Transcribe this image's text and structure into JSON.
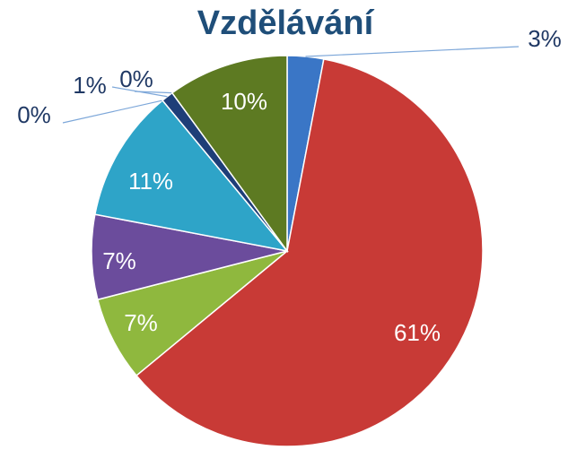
{
  "chart_data": {
    "type": "pie",
    "title": "Vzdělávání",
    "values": [
      3,
      61,
      7,
      7,
      11,
      0,
      1,
      0,
      10
    ],
    "value_labels": [
      "3%",
      "61%",
      "7%",
      "7%",
      "11%",
      "0%",
      "1%",
      "0%",
      "10%"
    ],
    "colors": [
      "#3a76c6",
      "#c83a36",
      "#8fb83e",
      "#6b4c9c",
      "#2ea4c8",
      "#4f6fb0",
      "#1e3e78",
      "#8a9a50",
      "#5d7a22"
    ]
  }
}
